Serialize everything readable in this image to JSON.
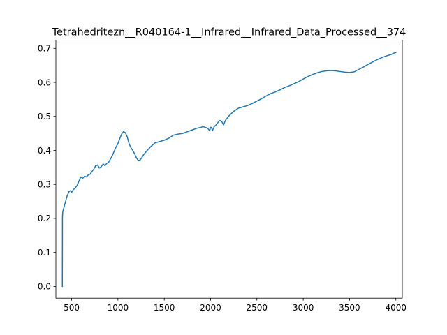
{
  "chart_data": {
    "type": "line",
    "title": "Tetrahedritezn__R040164-1__Infrared__Infrared_Data_Processed__374",
    "xlabel": "",
    "ylabel": "",
    "xlim": [
      330,
      4070
    ],
    "ylim": [
      -0.0345,
      0.724
    ],
    "x_ticks": [
      500,
      1000,
      1500,
      2000,
      2500,
      3000,
      3500,
      4000
    ],
    "x_tick_labels": [
      "500",
      "1000",
      "1500",
      "2000",
      "2500",
      "3000",
      "3500",
      "4000"
    ],
    "y_ticks": [
      0.0,
      0.1,
      0.2,
      0.3,
      0.4,
      0.5,
      0.6,
      0.7
    ],
    "y_tick_labels": [
      "0.0",
      "0.1",
      "0.2",
      "0.3",
      "0.4",
      "0.5",
      "0.6",
      "0.7"
    ],
    "grid": false,
    "legend": "none",
    "series": [
      {
        "color": "#1f77b4",
        "x": [
          400,
          401,
          402,
          405,
          410,
          420,
          430,
          450,
          470,
          490,
          500,
          520,
          540,
          560,
          580,
          600,
          620,
          640,
          660,
          680,
          700,
          720,
          740,
          760,
          780,
          800,
          820,
          840,
          860,
          880,
          900,
          920,
          940,
          960,
          980,
          1000,
          1020,
          1040,
          1060,
          1080,
          1100,
          1120,
          1140,
          1160,
          1180,
          1200,
          1220,
          1240,
          1260,
          1280,
          1300,
          1350,
          1400,
          1450,
          1500,
          1550,
          1600,
          1650,
          1700,
          1750,
          1800,
          1850,
          1900,
          1920,
          1940,
          1960,
          1980,
          1990,
          2000,
          2010,
          2020,
          2040,
          2060,
          2080,
          2100,
          2120,
          2140,
          2160,
          2180,
          2200,
          2250,
          2300,
          2350,
          2400,
          2450,
          2500,
          2550,
          2600,
          2650,
          2700,
          2750,
          2800,
          2850,
          2900,
          2950,
          3000,
          3050,
          3100,
          3150,
          3200,
          3250,
          3300,
          3350,
          3400,
          3450,
          3500,
          3550,
          3600,
          3650,
          3700,
          3750,
          3800,
          3850,
          3900,
          3950,
          3980,
          4000
        ],
        "y": [
          0.0,
          0.2,
          0.21,
          0.22,
          0.225,
          0.235,
          0.245,
          0.265,
          0.278,
          0.282,
          0.277,
          0.285,
          0.29,
          0.297,
          0.31,
          0.322,
          0.318,
          0.324,
          0.322,
          0.328,
          0.33,
          0.338,
          0.345,
          0.355,
          0.357,
          0.348,
          0.352,
          0.36,
          0.355,
          0.362,
          0.365,
          0.375,
          0.385,
          0.398,
          0.41,
          0.42,
          0.435,
          0.448,
          0.455,
          0.452,
          0.44,
          0.42,
          0.408,
          0.4,
          0.39,
          0.378,
          0.37,
          0.372,
          0.38,
          0.388,
          0.395,
          0.41,
          0.422,
          0.426,
          0.43,
          0.436,
          0.445,
          0.448,
          0.45,
          0.455,
          0.46,
          0.465,
          0.468,
          0.47,
          0.468,
          0.466,
          0.462,
          0.457,
          0.468,
          0.467,
          0.458,
          0.47,
          0.475,
          0.482,
          0.488,
          0.485,
          0.475,
          0.488,
          0.495,
          0.502,
          0.515,
          0.524,
          0.528,
          0.532,
          0.538,
          0.545,
          0.552,
          0.56,
          0.567,
          0.572,
          0.578,
          0.585,
          0.59,
          0.596,
          0.602,
          0.61,
          0.617,
          0.623,
          0.628,
          0.632,
          0.634,
          0.635,
          0.634,
          0.632,
          0.63,
          0.629,
          0.631,
          0.638,
          0.645,
          0.653,
          0.66,
          0.667,
          0.673,
          0.678,
          0.682,
          0.686,
          0.688
        ]
      }
    ]
  }
}
